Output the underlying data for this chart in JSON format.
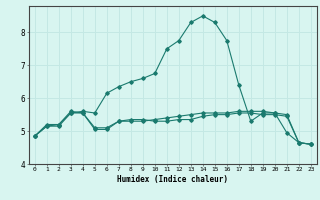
{
  "xlabel": "Humidex (Indice chaleur)",
  "background_color": "#d8f5f0",
  "grid_color": "#c4e8e4",
  "line_color": "#1a7a6e",
  "xlim": [
    -0.5,
    23.5
  ],
  "ylim": [
    4.0,
    8.8
  ],
  "yticks": [
    4,
    5,
    6,
    7,
    8
  ],
  "xticks": [
    0,
    1,
    2,
    3,
    4,
    5,
    6,
    7,
    8,
    9,
    10,
    11,
    12,
    13,
    14,
    15,
    16,
    17,
    18,
    19,
    20,
    21,
    22,
    23
  ],
  "series": [
    [
      4.85,
      5.15,
      5.15,
      5.55,
      5.55,
      5.05,
      5.05,
      5.3,
      5.3,
      5.3,
      5.35,
      5.4,
      5.45,
      5.5,
      5.55,
      5.55,
      5.55,
      5.6,
      5.6,
      5.6,
      5.55,
      5.5,
      4.65,
      4.6
    ],
    [
      4.85,
      5.15,
      5.2,
      5.55,
      5.6,
      5.55,
      6.15,
      6.35,
      6.5,
      6.6,
      6.75,
      7.5,
      7.75,
      8.3,
      8.5,
      8.3,
      7.75,
      6.4,
      5.3,
      5.55,
      5.55,
      4.95,
      4.65,
      4.6
    ],
    [
      4.85,
      5.2,
      5.2,
      5.6,
      5.55,
      5.1,
      5.1,
      5.3,
      5.35,
      5.35,
      5.3,
      5.3,
      5.35,
      5.35,
      5.45,
      5.5,
      5.5,
      5.55,
      5.55,
      5.5,
      5.5,
      5.45,
      4.65,
      4.6
    ]
  ]
}
